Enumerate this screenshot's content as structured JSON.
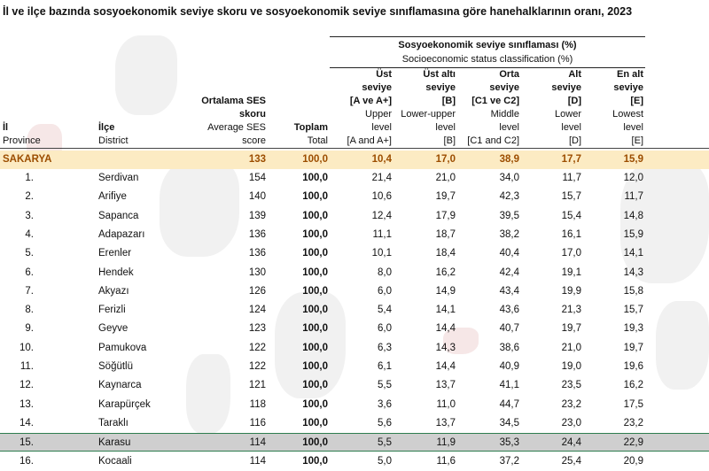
{
  "title": "İl ve ilçe bazında sosyoekonomik seviye skoru ve sosyoekonomik seviye sınıflamasına göre hanehalklarının oranı, 2023",
  "group_header": {
    "tr": "Sosyoekonomik seviye sınıflaması (%)",
    "en": "Socioeconomic status classification (%)"
  },
  "headers": {
    "il": {
      "tr": "İl",
      "en": "Province"
    },
    "ilce": {
      "tr": "İlçe",
      "en": "District"
    },
    "ses": {
      "tr1": "Ortalama SES",
      "tr2": "skoru",
      "en1": "Average SES",
      "en2": "score"
    },
    "toplam": {
      "tr": "Toplam",
      "en": "Total"
    },
    "a": {
      "l1": "Üst",
      "l2": "seviye",
      "l3": "[A ve A+]",
      "l4": "Upper",
      "l5": "level",
      "l6": "[A and A+]"
    },
    "b": {
      "l1": "Üst altı",
      "l2": "seviye",
      "l3": "[B]",
      "l4": "Lower-upper",
      "l5": "level",
      "l6": "[B]"
    },
    "c": {
      "l1": "Orta",
      "l2": "seviye",
      "l3": "[C1 ve C2]",
      "l4": "Middle",
      "l5": "level",
      "l6": "[C1 and C2]"
    },
    "d": {
      "l1": "Alt",
      "l2": "seviye",
      "l3": "[D]",
      "l4": "Lower",
      "l5": "level",
      "l6": "[D]"
    },
    "e": {
      "l1": "En alt",
      "l2": "seviye",
      "l3": "[E]",
      "l4": "Lowest",
      "l5": "level",
      "l6": "[E]"
    }
  },
  "province_row": {
    "name": "SAKARYA",
    "ses": "133",
    "toplam": "100,0",
    "a": "10,4",
    "b": "17,0",
    "c": "38,9",
    "d": "17,7",
    "e": "15,9"
  },
  "rows": [
    {
      "rank": "1.",
      "name": "Serdivan",
      "ses": "154",
      "toplam": "100,0",
      "a": "21,4",
      "b": "21,0",
      "c": "34,0",
      "d": "11,7",
      "e": "12,0"
    },
    {
      "rank": "2.",
      "name": "Arifiye",
      "ses": "140",
      "toplam": "100,0",
      "a": "10,6",
      "b": "19,7",
      "c": "42,3",
      "d": "15,7",
      "e": "11,7"
    },
    {
      "rank": "3.",
      "name": "Sapanca",
      "ses": "139",
      "toplam": "100,0",
      "a": "12,4",
      "b": "17,9",
      "c": "39,5",
      "d": "15,4",
      "e": "14,8"
    },
    {
      "rank": "4.",
      "name": "Adapazarı",
      "ses": "136",
      "toplam": "100,0",
      "a": "11,1",
      "b": "18,7",
      "c": "38,2",
      "d": "16,1",
      "e": "15,9"
    },
    {
      "rank": "5.",
      "name": "Erenler",
      "ses": "136",
      "toplam": "100,0",
      "a": "10,1",
      "b": "18,4",
      "c": "40,4",
      "d": "17,0",
      "e": "14,1"
    },
    {
      "rank": "6.",
      "name": "Hendek",
      "ses": "130",
      "toplam": "100,0",
      "a": "8,0",
      "b": "16,2",
      "c": "42,4",
      "d": "19,1",
      "e": "14,3"
    },
    {
      "rank": "7.",
      "name": "Akyazı",
      "ses": "126",
      "toplam": "100,0",
      "a": "6,0",
      "b": "14,9",
      "c": "43,4",
      "d": "19,9",
      "e": "15,8"
    },
    {
      "rank": "8.",
      "name": "Ferizli",
      "ses": "124",
      "toplam": "100,0",
      "a": "5,4",
      "b": "14,1",
      "c": "43,6",
      "d": "21,3",
      "e": "15,7"
    },
    {
      "rank": "9.",
      "name": "Geyve",
      "ses": "123",
      "toplam": "100,0",
      "a": "6,0",
      "b": "14,4",
      "c": "40,7",
      "d": "19,7",
      "e": "19,3"
    },
    {
      "rank": "10.",
      "name": "Pamukova",
      "ses": "122",
      "toplam": "100,0",
      "a": "6,3",
      "b": "14,3",
      "c": "38,6",
      "d": "21,0",
      "e": "19,7"
    },
    {
      "rank": "11.",
      "name": "Söğütlü",
      "ses": "122",
      "toplam": "100,0",
      "a": "6,1",
      "b": "14,4",
      "c": "40,9",
      "d": "19,0",
      "e": "19,6"
    },
    {
      "rank": "12.",
      "name": "Kaynarca",
      "ses": "121",
      "toplam": "100,0",
      "a": "5,5",
      "b": "13,7",
      "c": "41,1",
      "d": "23,5",
      "e": "16,2"
    },
    {
      "rank": "13.",
      "name": "Karapürçek",
      "ses": "118",
      "toplam": "100,0",
      "a": "3,6",
      "b": "11,0",
      "c": "44,7",
      "d": "23,2",
      "e": "17,5"
    },
    {
      "rank": "14.",
      "name": "Taraklı",
      "ses": "116",
      "toplam": "100,0",
      "a": "5,6",
      "b": "13,7",
      "c": "34,5",
      "d": "23,0",
      "e": "23,2"
    },
    {
      "rank": "15.",
      "name": "Karasu",
      "ses": "114",
      "toplam": "100,0",
      "a": "5,5",
      "b": "11,9",
      "c": "35,3",
      "d": "24,4",
      "e": "22,9"
    },
    {
      "rank": "16.",
      "name": "Kocaali",
      "ses": "114",
      "toplam": "100,0",
      "a": "5,0",
      "b": "11,6",
      "c": "37,2",
      "d": "25,4",
      "e": "20,9"
    }
  ],
  "highlight_index": 14
}
